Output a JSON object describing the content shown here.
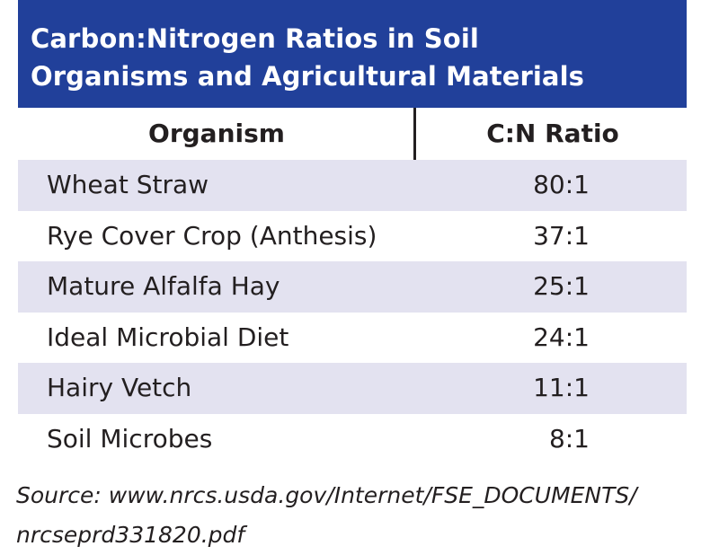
{
  "title": {
    "line1": "Carbon:Nitrogen Ratios in Soil",
    "line2": "Organisms and Agricultural Materials"
  },
  "table": {
    "headers": [
      "Organism",
      "C:N Ratio"
    ],
    "rows": [
      {
        "organism": "Wheat Straw",
        "ratio": "80:1"
      },
      {
        "organism": "Rye Cover Crop (Anthesis)",
        "ratio": "37:1"
      },
      {
        "organism": "Mature Alfalfa Hay",
        "ratio": "25:1"
      },
      {
        "organism": "Ideal Microbial Diet",
        "ratio": "24:1"
      },
      {
        "organism": "Hairy Vetch",
        "ratio": "11:1"
      },
      {
        "organism": "Soil Microbes",
        "ratio": "8:1"
      }
    ]
  },
  "source": {
    "line1": "Source: www.nrcs.usda.gov/Internet/FSE_DOCUMENTS/",
    "line2": "nrcseprd331820.pdf"
  },
  "colors": {
    "title_bg": "#21409a",
    "row_shade": "#e3e2f0"
  }
}
